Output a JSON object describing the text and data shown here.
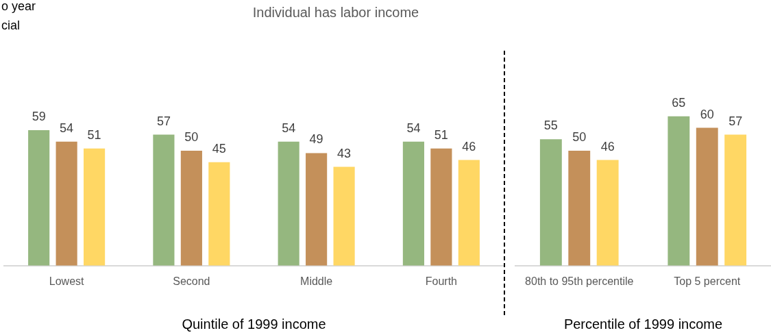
{
  "chart_data": [
    {
      "type": "bar",
      "title": "Individual has labor income",
      "xlabel": "Quintile of 1999 income",
      "categories": [
        "Lowest",
        "Second",
        "Middle",
        "Fourth"
      ],
      "series": [
        {
          "color": "#95b77f",
          "values": [
            59,
            57,
            54,
            54
          ]
        },
        {
          "color": "#c4905a",
          "values": [
            54,
            50,
            49,
            51
          ]
        },
        {
          "color": "#ffd764",
          "values": [
            51,
            45,
            43,
            46
          ]
        }
      ],
      "data_labels": true,
      "legend": false,
      "grid": false,
      "tick_labels": "x",
      "annotations": [
        "o year",
        "cial"
      ]
    },
    {
      "type": "bar",
      "xlabel": "Percentile of 1999 income",
      "categories": [
        "80th to 95th percentile",
        "Top 5 percent"
      ],
      "series": [
        {
          "color": "#95b77f",
          "values": [
            55,
            65
          ]
        },
        {
          "color": "#c4905a",
          "values": [
            50,
            60
          ]
        },
        {
          "color": "#ffd764",
          "values": [
            46,
            57
          ]
        }
      ],
      "data_labels": true,
      "legend": false,
      "grid": false,
      "tick_labels": "x"
    }
  ]
}
